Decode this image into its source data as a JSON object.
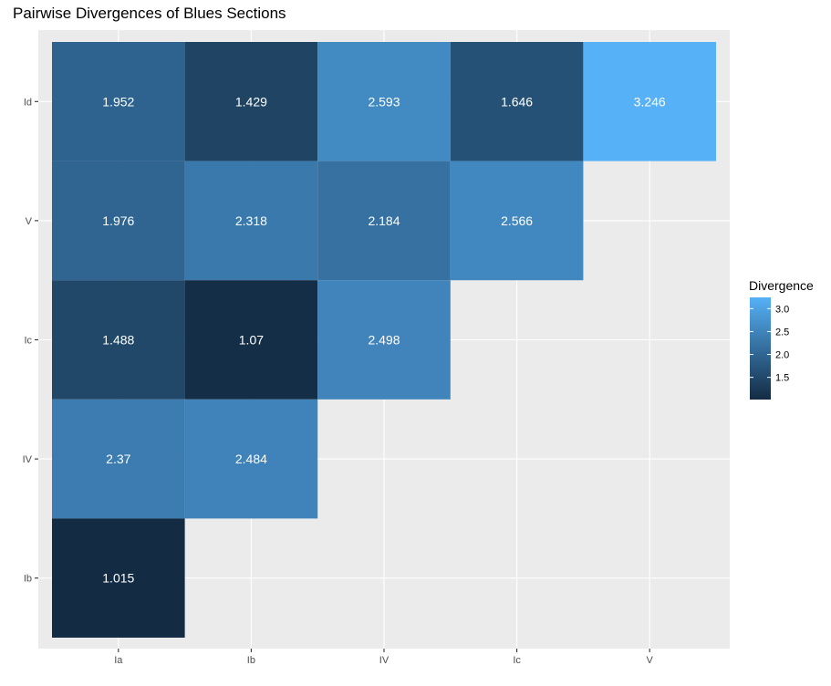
{
  "chart_data": {
    "type": "heatmap",
    "title": "Pairwise Divergences of Blues Sections",
    "xlabel": "",
    "ylabel": "",
    "x_categories": [
      "Ia",
      "Ib",
      "IV",
      "Ic",
      "V"
    ],
    "y_categories": [
      "Ib",
      "IV",
      "Ic",
      "V",
      "Id"
    ],
    "cells": [
      {
        "x": "Ia",
        "y": "Id",
        "value": 1.952,
        "label": "1.952"
      },
      {
        "x": "Ib",
        "y": "Id",
        "value": 1.429,
        "label": "1.429"
      },
      {
        "x": "IV",
        "y": "Id",
        "value": 2.593,
        "label": "2.593"
      },
      {
        "x": "Ic",
        "y": "Id",
        "value": 1.646,
        "label": "1.646"
      },
      {
        "x": "V",
        "y": "Id",
        "value": 3.246,
        "label": "3.246"
      },
      {
        "x": "Ia",
        "y": "V",
        "value": 1.976,
        "label": "1.976"
      },
      {
        "x": "Ib",
        "y": "V",
        "value": 2.318,
        "label": "2.318"
      },
      {
        "x": "IV",
        "y": "V",
        "value": 2.184,
        "label": "2.184"
      },
      {
        "x": "Ic",
        "y": "V",
        "value": 2.566,
        "label": "2.566"
      },
      {
        "x": "Ia",
        "y": "Ic",
        "value": 1.488,
        "label": "1.488"
      },
      {
        "x": "Ib",
        "y": "Ic",
        "value": 1.07,
        "label": "1.07"
      },
      {
        "x": "IV",
        "y": "Ic",
        "value": 2.498,
        "label": "2.498"
      },
      {
        "x": "Ia",
        "y": "IV",
        "value": 2.37,
        "label": "2.37"
      },
      {
        "x": "Ib",
        "y": "IV",
        "value": 2.484,
        "label": "2.484"
      },
      {
        "x": "Ia",
        "y": "Ib",
        "value": 1.015,
        "label": "1.015"
      }
    ],
    "legend": {
      "title": "Divergence",
      "placement": "right",
      "ticks": [
        1.5,
        2.0,
        2.5,
        3.0
      ],
      "tick_labels": [
        "1.5",
        "2.0",
        "2.5",
        "3.0"
      ]
    },
    "color_scale": {
      "low": "#132B43",
      "high": "#56B1F7"
    },
    "grid": true,
    "panel_background": "#EBEBEB",
    "grid_color": "#FFFFFF"
  }
}
